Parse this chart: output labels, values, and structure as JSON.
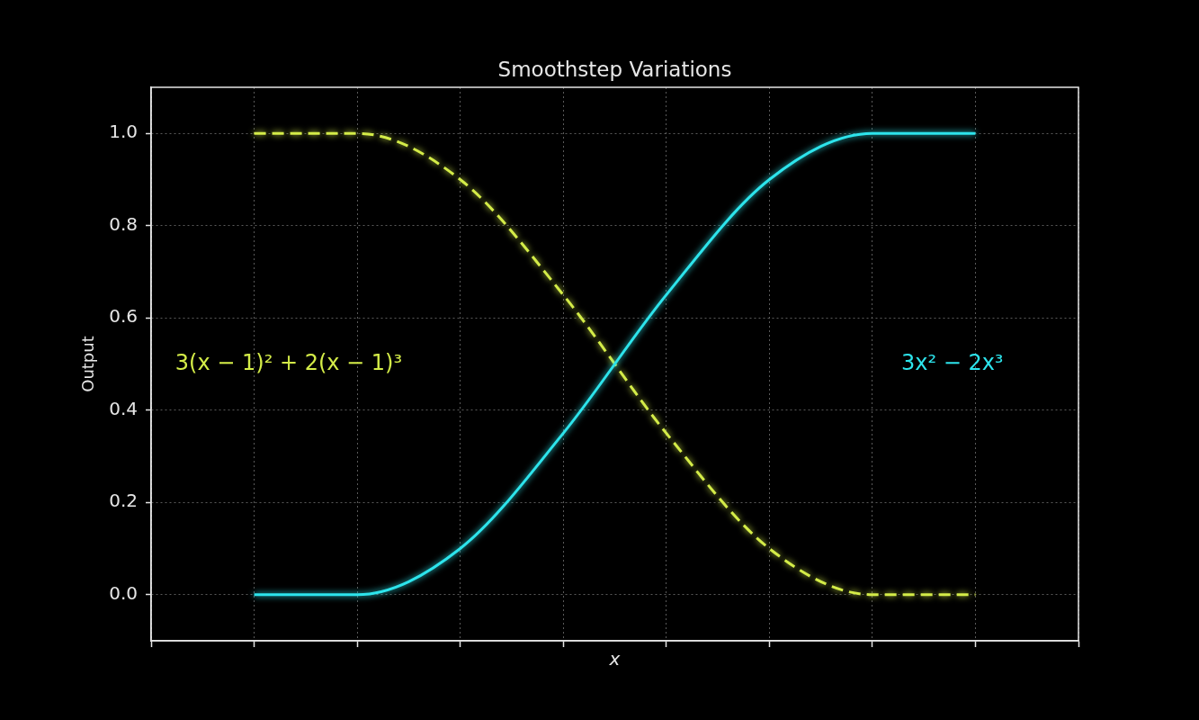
{
  "chart_data": {
    "type": "line",
    "title": "Smoothstep Variations",
    "xlabel": "x",
    "ylabel": "Output",
    "categories": [
      null,
      null,
      null,
      null,
      null,
      null,
      null,
      null,
      null,
      null
    ],
    "series": [
      {
        "name": "3x² − 2x³",
        "color": "#2de4ec",
        "line_style": "solid",
        "values": [
          null,
          0,
          0,
          0.1,
          0.35,
          0.65,
          0.9,
          1,
          1,
          null
        ]
      },
      {
        "name": "3(x − 1)² + 2(x − 1)³",
        "color": "#d4ec48",
        "line_style": "dashed",
        "values": [
          null,
          1,
          1,
          0.9,
          0.65,
          0.35,
          0.1,
          0,
          0,
          null
        ]
      }
    ],
    "ylim": [
      -0.1,
      1.1
    ],
    "yticks": [
      {
        "value": 0,
        "label": "0.0"
      },
      0.2,
      0.4,
      0.6,
      0.8,
      {
        "value": 1,
        "label": "1.0"
      }
    ],
    "grid": true,
    "legend": false,
    "tick_labels": "y",
    "marker": "none"
  }
}
